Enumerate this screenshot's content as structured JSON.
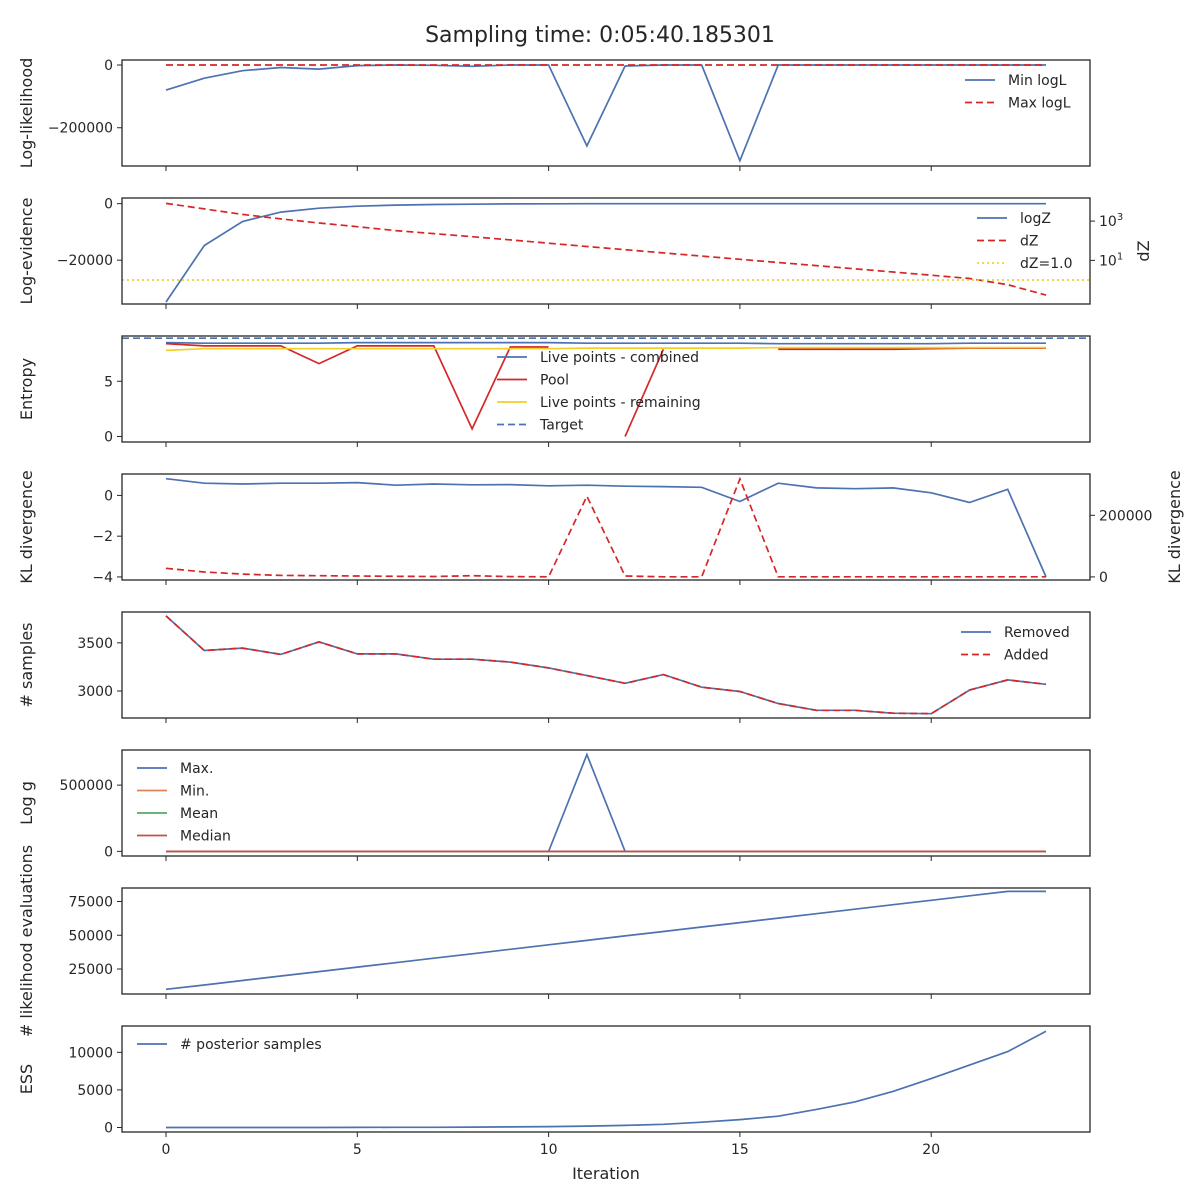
{
  "title": "Sampling time: 0:05:40.185301",
  "xlabel": "Iteration",
  "x_ticks": [
    0,
    5,
    10,
    15,
    20
  ],
  "x_range": [
    -1.15,
    24.15
  ],
  "colors": {
    "blue": "#4c72b0",
    "red": "#d62728",
    "orange": "#dd8452",
    "green": "#55a868",
    "crimson": "#c44e52",
    "gold": "#f2d027",
    "axes": "#262626"
  },
  "chart_data": [
    {
      "type": "line",
      "ylabel": "Log-likelihood",
      "ylim": [
        -322000,
        16000
      ],
      "yticks": [
        {
          "v": 0,
          "t": "0"
        },
        {
          "v": -200000,
          "t": "−200000"
        }
      ],
      "legend": {
        "position": "upper right"
      },
      "series": [
        {
          "name": "Min logL",
          "style": "solid",
          "color": "blue",
          "x": [
            0,
            1,
            2,
            3,
            4,
            5,
            6,
            7,
            8,
            9,
            10,
            11,
            12,
            13,
            14,
            15,
            16,
            17,
            18,
            19,
            20,
            21,
            22,
            23
          ],
          "y": [
            -80000,
            -42000,
            -18000,
            -8000,
            -13000,
            -2000,
            0,
            -1000,
            -4000,
            0,
            0,
            -258000,
            -3000,
            0,
            0,
            -305000,
            0,
            0,
            0,
            0,
            0,
            0,
            0,
            0
          ]
        },
        {
          "name": "Max logL",
          "style": "dashed",
          "color": "red",
          "x": [
            0,
            1,
            2,
            3,
            4,
            5,
            6,
            7,
            8,
            9,
            10,
            11,
            12,
            13,
            14,
            15,
            16,
            17,
            18,
            19,
            20,
            21,
            22,
            23
          ],
          "y": [
            0,
            0,
            0,
            0,
            0,
            0,
            0,
            0,
            0,
            0,
            0,
            0,
            0,
            0,
            0,
            0,
            0,
            0,
            0,
            0,
            0,
            0,
            0,
            0
          ]
        }
      ]
    },
    {
      "type": "line",
      "ylabel": "Log-evidence",
      "ylim": [
        -35500,
        2000
      ],
      "yticks": [
        {
          "v": 0,
          "t": "0"
        },
        {
          "v": -20000,
          "t": "−20000"
        }
      ],
      "y2label": "dZ",
      "y2scale": "log",
      "y2lim": [
        0.06,
        15000
      ],
      "y2ticks": [
        {
          "v": 1000,
          "t": "10",
          "sup": "3"
        },
        {
          "v": 10,
          "t": "10",
          "sup": "1"
        }
      ],
      "legend": {
        "position": "upper right"
      },
      "series": [
        {
          "name": "logZ",
          "style": "solid",
          "color": "blue",
          "axis": "left",
          "x": [
            0,
            1,
            2,
            3,
            4,
            5,
            6,
            7,
            8,
            9,
            10,
            11,
            12,
            13,
            14,
            15,
            16,
            17,
            18,
            19,
            20,
            21,
            22,
            23
          ],
          "y": [
            -34800,
            -14800,
            -6300,
            -3000,
            -1600,
            -900,
            -500,
            -300,
            -180,
            -100,
            -60,
            -30,
            -15,
            -8,
            -4,
            -2,
            -1,
            0,
            0,
            0,
            0,
            0,
            0,
            0
          ]
        },
        {
          "name": "dZ",
          "style": "dashed",
          "color": "red",
          "axis": "right",
          "x": [
            0,
            1,
            2,
            3,
            4,
            5,
            6,
            7,
            8,
            9,
            10,
            11,
            12,
            13,
            14,
            15,
            16,
            17,
            18,
            19,
            20,
            21,
            22,
            23
          ],
          "y": [
            8000,
            4200,
            2200,
            1300,
            800,
            520,
            330,
            230,
            160,
            110,
            75,
            51,
            35,
            24,
            16.5,
            11.3,
            7.8,
            5.4,
            3.7,
            2.55,
            1.75,
            1.2,
            0.58,
            0.17
          ]
        },
        {
          "name": "dZ=1.0",
          "style": "dotted",
          "color": "gold",
          "axis": "right",
          "hline": 1.0
        }
      ]
    },
    {
      "type": "line",
      "ylabel": "Entropy",
      "ylim": [
        -0.5,
        9.1
      ],
      "yticks": [
        {
          "v": 5,
          "t": "5"
        },
        {
          "v": 0,
          "t": "0"
        }
      ],
      "legend": {
        "position": "upper center"
      },
      "series": [
        {
          "name": "Live points - combined",
          "style": "solid",
          "color": "blue",
          "x": [
            0,
            1,
            2,
            3,
            4,
            5,
            6,
            7,
            8,
            9,
            10,
            11,
            12,
            13,
            14,
            15,
            16,
            17,
            18,
            19,
            20,
            21,
            22,
            23
          ],
          "y": [
            8.5,
            8.45,
            8.45,
            8.45,
            8.45,
            8.5,
            8.5,
            8.5,
            8.5,
            8.5,
            8.5,
            8.45,
            8.45,
            8.45,
            8.45,
            8.45,
            8.4,
            8.4,
            8.4,
            8.4,
            8.4,
            8.45,
            8.45,
            8.45
          ]
        },
        {
          "name": "Pool",
          "style": "solid",
          "color": "red",
          "segments": [
            {
              "x": [
                0,
                1,
                2,
                3,
                4,
                5,
                6,
                7,
                8,
                9,
                10
              ],
              "y": [
                8.4,
                8.2,
                8.2,
                8.2,
                6.6,
                8.2,
                8.2,
                8.2,
                0.7,
                8.1,
                8.1
              ]
            },
            {
              "x": [
                12,
                13
              ],
              "y": [
                0,
                7.9
              ]
            },
            {
              "x": [
                16,
                17,
                18,
                19,
                20,
                21,
                22,
                23
              ],
              "y": [
                7.9,
                7.9,
                7.9,
                7.9,
                7.95,
                8.0,
                8.0,
                8.0
              ]
            }
          ]
        },
        {
          "name": "Live points - remaining",
          "style": "solid",
          "color": "gold",
          "x": [
            0,
            1,
            2,
            3,
            4,
            5,
            6,
            7,
            8,
            9,
            10,
            11,
            12,
            13,
            14,
            15,
            16,
            17,
            18,
            19,
            20,
            21,
            22,
            23
          ],
          "y": [
            7.8,
            7.95,
            7.95,
            7.95,
            7.95,
            7.95,
            7.95,
            7.95,
            7.95,
            7.95,
            7.95,
            8.0,
            8.0,
            8.0,
            8.0,
            8.0,
            8.05,
            8.05,
            8.05,
            8.05,
            8.05,
            8.05,
            8.05,
            8.05
          ]
        },
        {
          "name": "Target",
          "style": "dashed",
          "color": "blue",
          "hline": 8.9
        }
      ]
    },
    {
      "type": "line",
      "ylabel": "KL divergence",
      "ylim": [
        -4.15,
        1.05
      ],
      "yticks": [
        {
          "v": 0,
          "t": "0"
        },
        {
          "v": -2,
          "t": "−2"
        },
        {
          "v": -4,
          "t": "−4"
        }
      ],
      "y2label": "KL divergence",
      "y2lim": [
        -10000,
        334000
      ],
      "y2ticks": [
        {
          "v": 200000,
          "t": "200000"
        },
        {
          "v": 0,
          "t": "0"
        }
      ],
      "series": [
        {
          "name": "",
          "style": "solid",
          "color": "blue",
          "axis": "left",
          "x": [
            0,
            1,
            2,
            3,
            4,
            5,
            6,
            7,
            8,
            9,
            10,
            11,
            12,
            13,
            14,
            15,
            16,
            17,
            18,
            19,
            20,
            21,
            22,
            23
          ],
          "y": [
            0.82,
            0.6,
            0.56,
            0.6,
            0.6,
            0.63,
            0.5,
            0.56,
            0.52,
            0.53,
            0.47,
            0.5,
            0.45,
            0.43,
            0.4,
            -0.3,
            0.6,
            0.37,
            0.33,
            0.37,
            0.13,
            -0.35,
            0.3,
            -4.0
          ]
        },
        {
          "name": "",
          "style": "dashed",
          "color": "red",
          "axis": "right",
          "x": [
            0,
            1,
            2,
            3,
            4,
            5,
            6,
            7,
            8,
            9,
            10,
            11,
            12,
            13,
            14,
            15,
            16,
            17,
            18,
            19,
            20,
            21,
            22,
            23
          ],
          "y": [
            28000,
            16000,
            9000,
            5000,
            4000,
            3000,
            2000,
            1500,
            4000,
            1000,
            500,
            262000,
            3000,
            500,
            500,
            318000,
            500,
            500,
            500,
            500,
            500,
            500,
            500,
            500
          ]
        }
      ]
    },
    {
      "type": "line",
      "ylabel": "# samples",
      "ylim": [
        2720,
        3820
      ],
      "yticks": [
        {
          "v": 3500,
          "t": "3500"
        },
        {
          "v": 3000,
          "t": "3000"
        }
      ],
      "legend": {
        "position": "upper right"
      },
      "series": [
        {
          "name": "Removed",
          "style": "solid",
          "color": "blue",
          "x": [
            0,
            1,
            2,
            3,
            4,
            5,
            6,
            7,
            8,
            9,
            10,
            11,
            12,
            13,
            14,
            15,
            16,
            17,
            18,
            19,
            20,
            21,
            22,
            23
          ],
          "y": [
            3780,
            3420,
            3445,
            3380,
            3510,
            3385,
            3385,
            3330,
            3330,
            3300,
            3240,
            3160,
            3080,
            3170,
            3040,
            2995,
            2870,
            2800,
            2800,
            2770,
            2765,
            3010,
            3115,
            3070
          ]
        },
        {
          "name": "Added",
          "style": "dashed",
          "color": "red",
          "x": [
            0,
            1,
            2,
            3,
            4,
            5,
            6,
            7,
            8,
            9,
            10,
            11,
            12,
            13,
            14,
            15,
            16,
            17,
            18,
            19,
            20,
            21,
            22,
            23
          ],
          "y": [
            3780,
            3420,
            3445,
            3380,
            3510,
            3385,
            3385,
            3330,
            3330,
            3300,
            3240,
            3160,
            3080,
            3170,
            3040,
            2995,
            2870,
            2800,
            2800,
            2770,
            2765,
            3010,
            3115,
            3070
          ]
        }
      ]
    },
    {
      "type": "line",
      "ylabel": "Log g",
      "ylim": [
        -35000,
        765000
      ],
      "yticks": [
        {
          "v": 500000,
          "t": "500000"
        },
        {
          "v": 0,
          "t": "0"
        }
      ],
      "legend": {
        "position": "upper left"
      },
      "series": [
        {
          "name": "Max.",
          "style": "solid",
          "color": "blue",
          "x": [
            0,
            1,
            2,
            3,
            4,
            5,
            6,
            7,
            8,
            9,
            10,
            11,
            12,
            13,
            14,
            15,
            16,
            17,
            18,
            19,
            20,
            21,
            22,
            23
          ],
          "y": [
            0,
            0,
            0,
            0,
            0,
            0,
            0,
            0,
            0,
            0,
            0,
            730000,
            0,
            0,
            0,
            0,
            0,
            0,
            0,
            0,
            0,
            0,
            0,
            0
          ]
        },
        {
          "name": "Min.",
          "style": "solid",
          "color": "orange",
          "x": [
            0,
            23
          ],
          "y": [
            0,
            0
          ]
        },
        {
          "name": "Mean",
          "style": "solid",
          "color": "green",
          "x": [
            0,
            23
          ],
          "y": [
            0,
            0
          ]
        },
        {
          "name": "Median",
          "style": "solid",
          "color": "crimson",
          "x": [
            0,
            23
          ],
          "y": [
            0,
            0
          ]
        }
      ]
    },
    {
      "type": "line",
      "ylabel": "# likelihood evaluations",
      "ylim": [
        6500,
        85000
      ],
      "yticks": [
        {
          "v": 75000,
          "t": "75000"
        },
        {
          "v": 50000,
          "t": "50000"
        },
        {
          "v": 25000,
          "t": "25000"
        }
      ],
      "series": [
        {
          "name": "",
          "style": "solid",
          "color": "blue",
          "x": [
            0,
            1,
            2,
            3,
            4,
            5,
            6,
            7,
            8,
            9,
            10,
            11,
            12,
            13,
            14,
            15,
            16,
            17,
            18,
            19,
            20,
            21,
            22,
            23
          ],
          "y": [
            10000,
            13200,
            16500,
            19800,
            23100,
            26400,
            29700,
            33000,
            36300,
            39600,
            42900,
            46200,
            49500,
            52800,
            56100,
            59400,
            62700,
            66000,
            69300,
            72600,
            75900,
            79200,
            82500,
            82500
          ]
        }
      ]
    },
    {
      "type": "line",
      "ylabel": "ESS",
      "ylim": [
        -600,
        13500
      ],
      "yticks": [
        {
          "v": 10000,
          "t": "10000"
        },
        {
          "v": 5000,
          "t": "5000"
        },
        {
          "v": 0,
          "t": "0"
        }
      ],
      "legend": {
        "position": "upper left"
      },
      "series": [
        {
          "name": "# posterior samples",
          "style": "solid",
          "color": "blue",
          "x": [
            0,
            1,
            2,
            3,
            4,
            5,
            6,
            7,
            8,
            9,
            10,
            11,
            12,
            13,
            14,
            15,
            16,
            17,
            18,
            19,
            20,
            21,
            22,
            23
          ],
          "y": [
            0,
            0,
            0,
            0,
            5,
            10,
            20,
            30,
            50,
            80,
            120,
            180,
            280,
            420,
            700,
            1050,
            1500,
            2400,
            3400,
            4800,
            6500,
            8300,
            10100,
            12800
          ]
        }
      ]
    }
  ]
}
